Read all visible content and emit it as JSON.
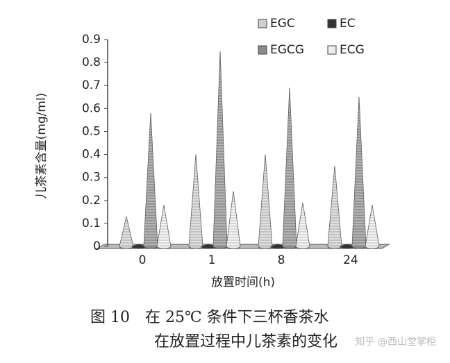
{
  "chart_data": {
    "type": "bar",
    "title": "图 10　在 25℃ 条件下三杯香茶水",
    "subtitle": "在放置过程中儿茶素的变化",
    "watermark": "知乎 @西山堂掌柜",
    "x_label": "放置时间(h)",
    "y_label": "儿茶素含量(mg/ml)",
    "categories": [
      "0",
      "1",
      "8",
      "24"
    ],
    "series": [
      {
        "name": "EGC",
        "color": "#cfcfcf",
        "values": [
          0.13,
          0.4,
          0.4,
          0.35
        ]
      },
      {
        "name": "EC",
        "color": "#333333",
        "values": [
          0.01,
          0.01,
          0.01,
          0.01
        ]
      },
      {
        "name": "EGCG",
        "color": "#8a8a8a",
        "values": [
          0.58,
          0.85,
          0.69,
          0.65
        ]
      },
      {
        "name": "ECG",
        "color": "#eeeeee",
        "values": [
          0.18,
          0.24,
          0.19,
          0.18
        ]
      }
    ],
    "ylim": [
      0,
      0.9
    ],
    "yticks": [
      0,
      0.1,
      0.2,
      0.3,
      0.4,
      0.5,
      0.6,
      0.7,
      0.8,
      0.9
    ]
  }
}
